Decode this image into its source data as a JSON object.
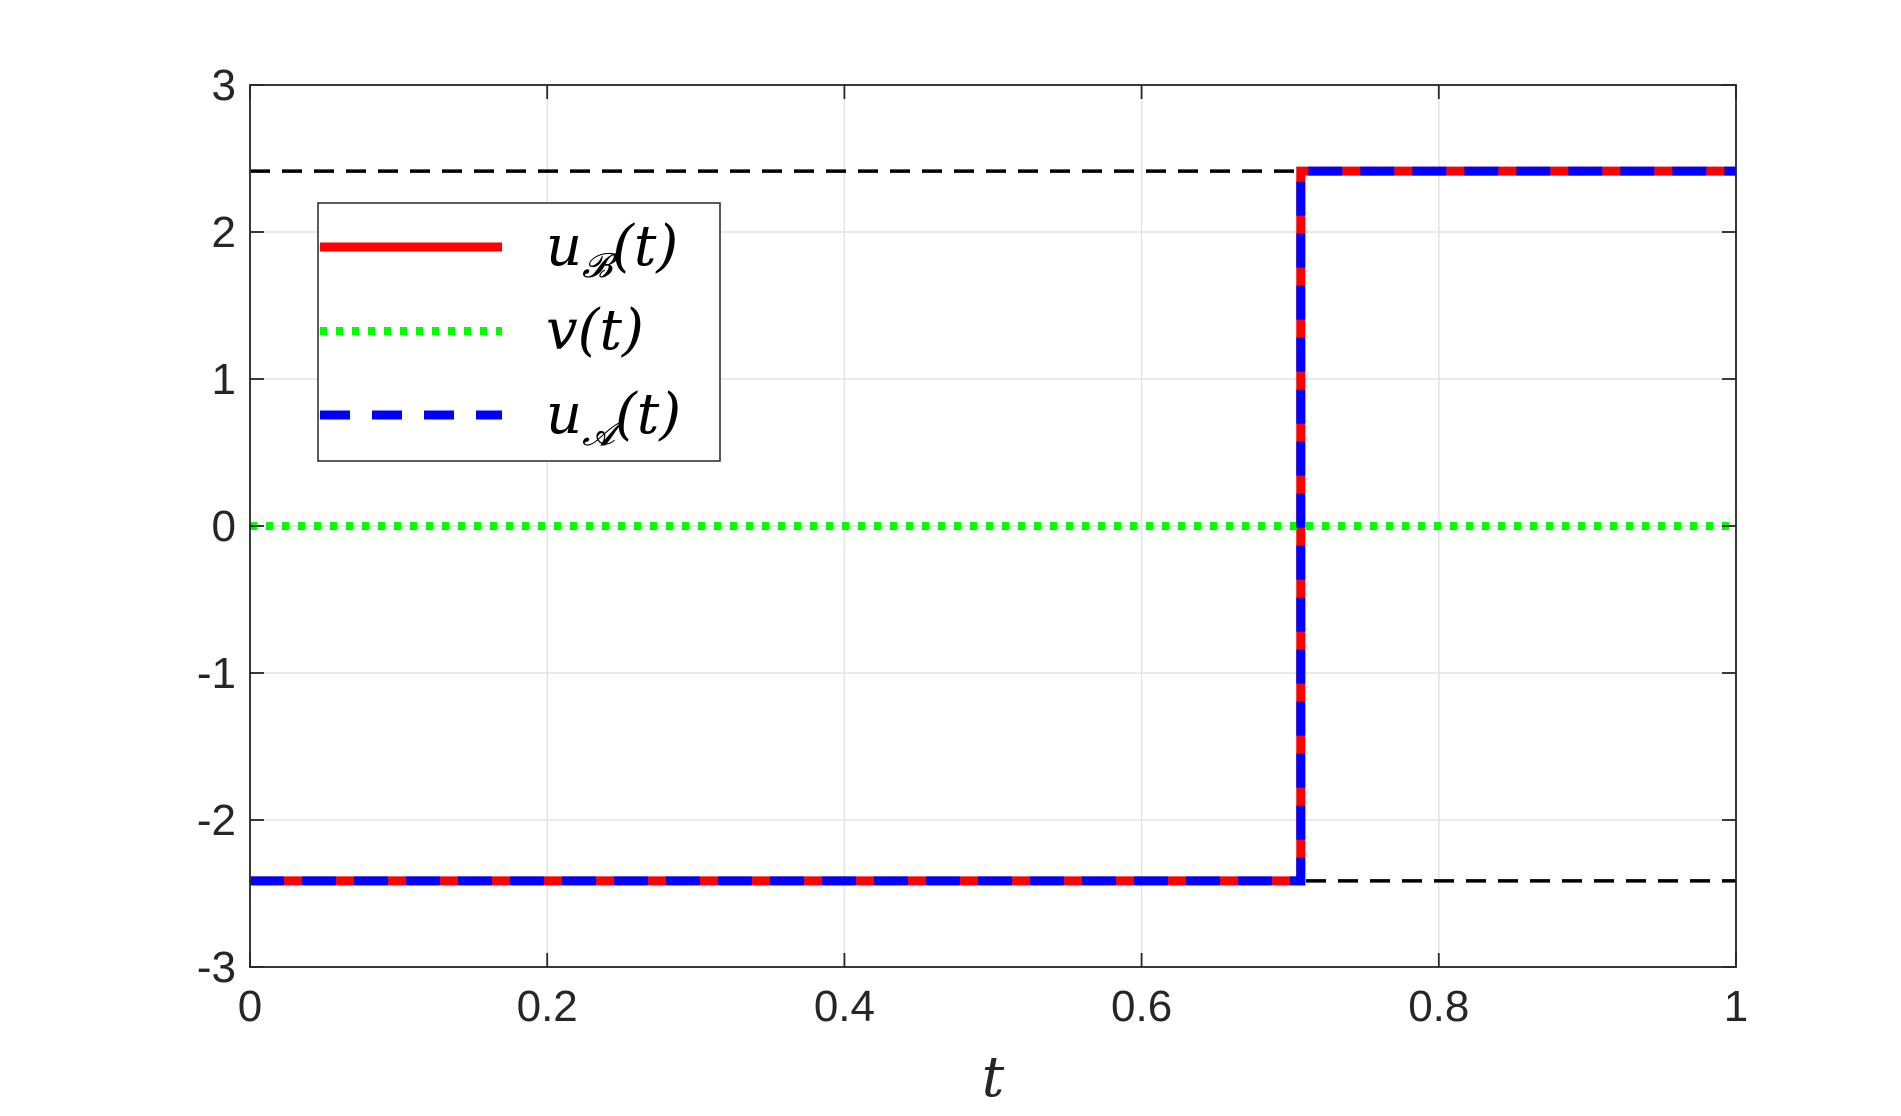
{
  "chart_data": {
    "type": "line",
    "xlabel": "t",
    "ylabel": "",
    "xlim": [
      0,
      1
    ],
    "ylim": [
      -3,
      3
    ],
    "xticks": [
      0,
      0.2,
      0.4,
      0.6,
      0.8,
      1
    ],
    "xtick_labels": [
      "0",
      "0.2",
      "0.4",
      "0.6",
      "0.8",
      "1"
    ],
    "yticks": [
      -3,
      -2,
      -1,
      0,
      1,
      2,
      3
    ],
    "ytick_labels": [
      "-3",
      "-2",
      "-1",
      "0",
      "1",
      "2",
      "3"
    ],
    "grid": true,
    "legend_position": "upper-left",
    "series": [
      {
        "name_main": "u",
        "name_sub": "𝓑",
        "name_tail": "(t)",
        "color": "#ff0000",
        "style": "solid",
        "x": [
          0,
          0.7071,
          0.7071,
          1
        ],
        "y": [
          -2.414,
          -2.414,
          2.414,
          2.414
        ]
      },
      {
        "name_main": "v",
        "name_sub": "",
        "name_tail": "(t)",
        "color": "#00ff00",
        "style": "dotted",
        "x": [
          0,
          1
        ],
        "y": [
          0,
          0
        ]
      },
      {
        "name_main": "u",
        "name_sub": "𝓐",
        "name_tail": "(t)",
        "color": "#0000ff",
        "style": "dashed",
        "x": [
          0,
          0.7071,
          0.7071,
          1
        ],
        "y": [
          -2.414,
          -2.414,
          2.414,
          2.414
        ]
      }
    ],
    "reference_lines": [
      {
        "y": 2.414,
        "color": "#000000",
        "style": "dashed"
      },
      {
        "y": -2.414,
        "color": "#000000",
        "style": "dashed"
      }
    ]
  }
}
